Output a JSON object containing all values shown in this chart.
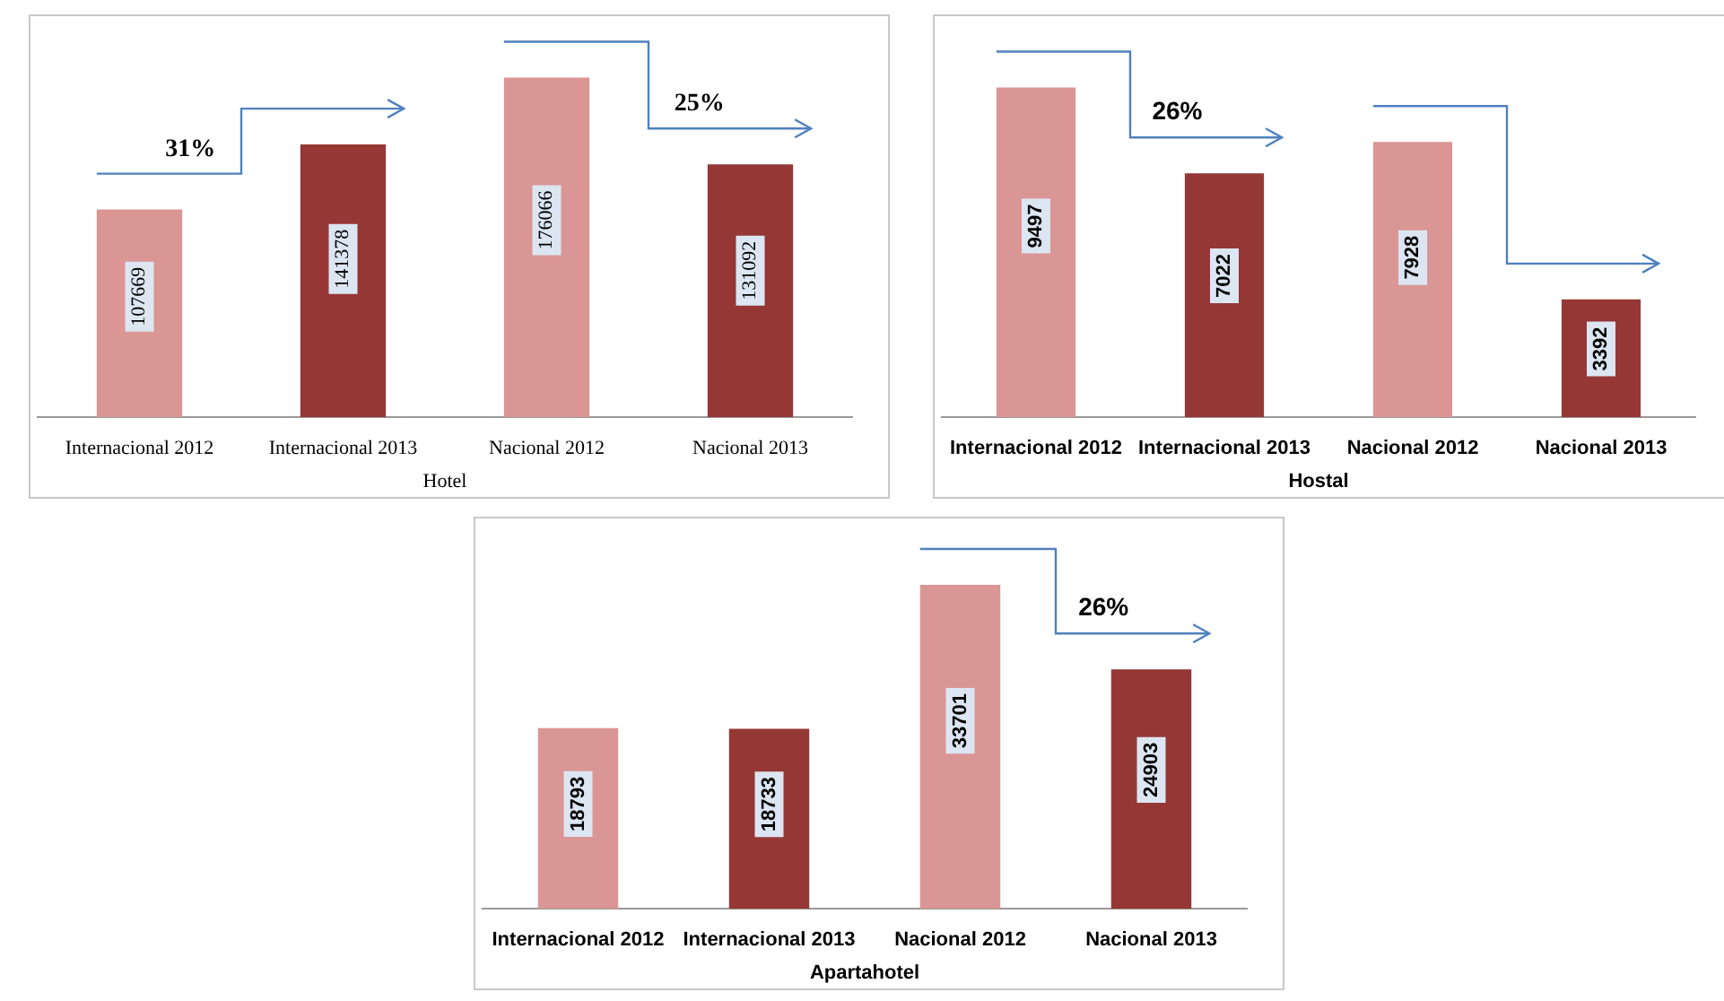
{
  "chart_data": [
    {
      "type": "bar",
      "xlabel": "Hotel",
      "categories": [
        "Internacional 2012",
        "Internacional 2013",
        "Nacional 2012",
        "Nacional 2013"
      ],
      "values": [
        107669,
        141378,
        176066,
        131092
      ],
      "colors": [
        "#d99694",
        "#953735",
        "#d99694",
        "#953735"
      ],
      "data_labels": true,
      "tick_labels": "x",
      "annotations": [
        "31%",
        "25%"
      ]
    },
    {
      "type": "bar",
      "xlabel": "Hostal",
      "categories": [
        "Internacional 2012",
        "Internacional 2013",
        "Nacional 2012",
        "Nacional 2013"
      ],
      "values": [
        9497,
        7022,
        7928,
        3392
      ],
      "colors": [
        "#d99694",
        "#953735",
        "#d99694",
        "#953735"
      ],
      "data_labels": true,
      "tick_labels": "x",
      "annotations": [
        "26%"
      ]
    },
    {
      "type": "bar",
      "xlabel": "Apartahotel",
      "categories": [
        "Internacional 2012",
        "Internacional 2013",
        "Nacional 2012",
        "Nacional 2013"
      ],
      "values": [
        18793,
        18733,
        33701,
        24903
      ],
      "colors": [
        "#d99694",
        "#953735",
        "#d99694",
        "#953735"
      ],
      "data_labels": true,
      "tick_labels": "x",
      "annotations": [
        "26%"
      ]
    }
  ]
}
